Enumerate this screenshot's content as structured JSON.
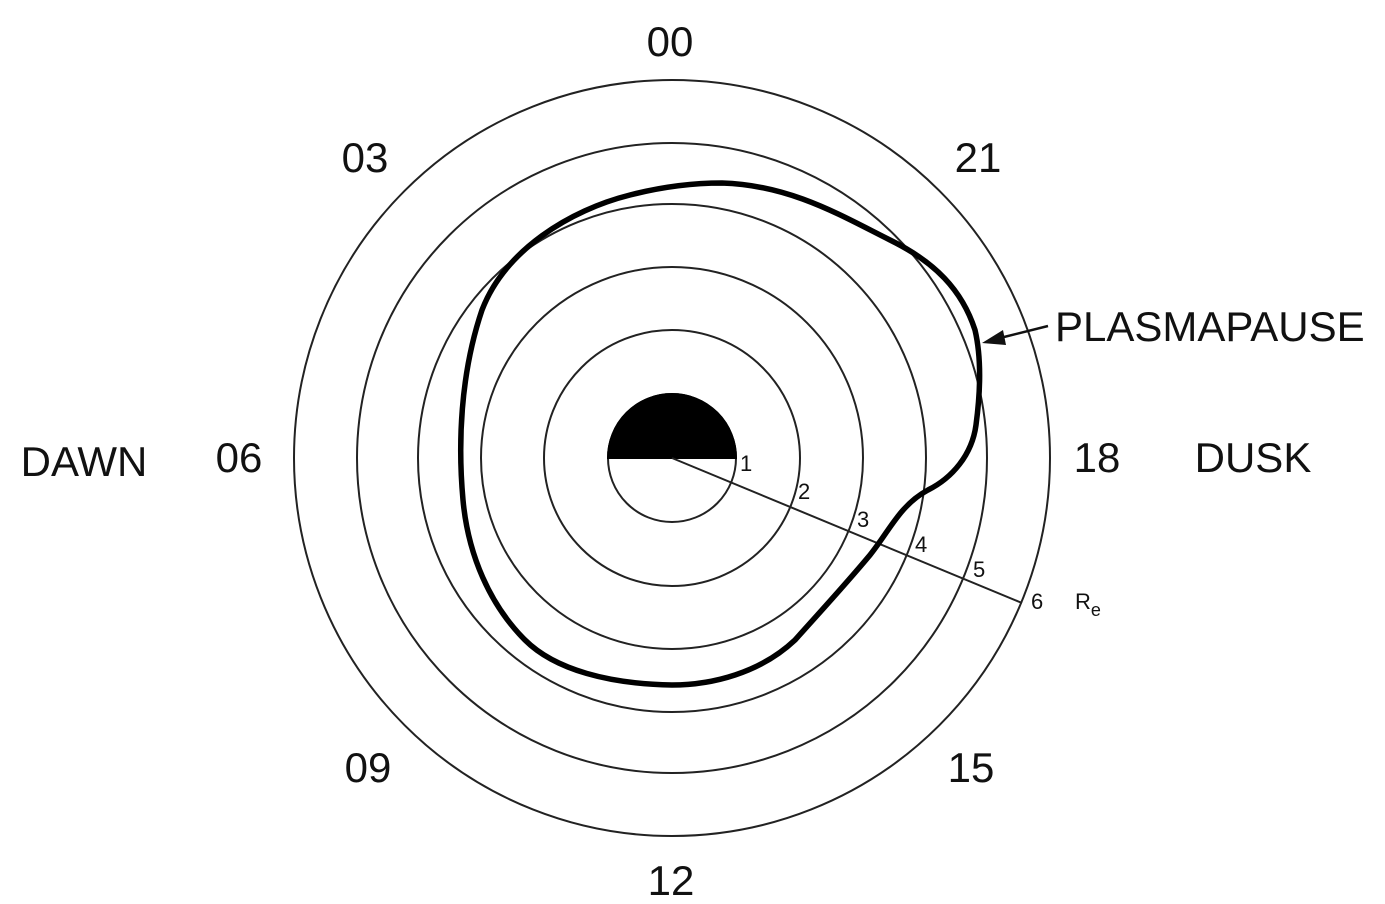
{
  "diagram": {
    "local_times": [
      "00",
      "21",
      "18",
      "15",
      "12",
      "09",
      "06",
      "03"
    ],
    "dawn_label": "DAWN",
    "dusk_label": "DUSK",
    "plasmapause_label": "PLASMAPAUSE",
    "radius_ticks": [
      "1",
      "2",
      "3",
      "4",
      "5",
      "6"
    ],
    "radius_unit_main": "R",
    "radius_unit_sub": "e",
    "colors": {
      "ink": "#000000",
      "earth_night": "#000000",
      "earth_day": "#ffffff"
    }
  }
}
